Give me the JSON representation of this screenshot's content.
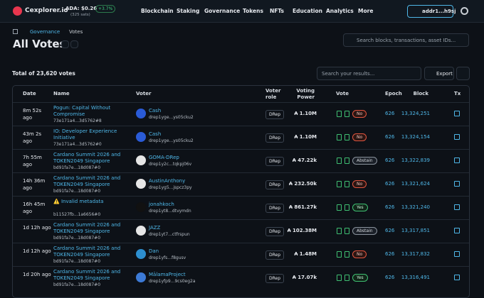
{
  "header": {
    "logo": "Cexplorer.io",
    "price": "ADA: $0.26",
    "change": "+3.7%",
    "sats": "(325 sats)",
    "nav": [
      "Blockchain",
      "Staking",
      "Governance",
      "Tokens",
      "NFTs",
      "Education",
      "Analytics",
      "More"
    ],
    "wallet": "addr1...h9sj"
  },
  "breadcrumb": [
    "Governance",
    "Votes"
  ],
  "title": "All Votes",
  "global_search": "Search blocks, transactions, asset IDs...",
  "total": "Total of 23,620 votes",
  "result_search": "Search your results...",
  "export": "Export",
  "table": {
    "columns": [
      "Date",
      "Name",
      "Voter",
      "Voter role",
      "Voting Power",
      "Vote",
      "Epoch",
      "Block",
      "Tx"
    ],
    "rows": [
      {
        "date": "8m 52s ago",
        "name": "Pogun: Capital Without Compromise",
        "hash": "73e171a4...3d5762#8",
        "voter": "Cash",
        "drep": "drep1yge...ys05cku2",
        "role": "DRep",
        "power": "₳ 1.10M",
        "vote": "No",
        "epoch": "626",
        "block": "13,324,251"
      },
      {
        "date": "43m 2s ago",
        "name": "IO: Developer Experience Initiative",
        "hash": "73e171a4...3d5762#0",
        "voter": "Cash",
        "drep": "drep1yge...ys05cku2",
        "role": "DRep",
        "power": "₳ 1.10M",
        "vote": "No",
        "epoch": "626",
        "block": "13,324,154"
      },
      {
        "date": "7h 55m ago",
        "name": "Cardano Summit 2026 and TOKEN2049 Singapore",
        "hash": "bd91fa7e...18d087#0",
        "voter": "GOMA-DRep",
        "drep": "drep1y2c...tqkpj06v",
        "role": "DRep",
        "power": "₳ 47.22k",
        "vote": "Abstain",
        "epoch": "626",
        "block": "13,322,839"
      },
      {
        "date": "14h 36m ago",
        "name": "Cardano Summit 2026 and TOKEN2049 Singapore",
        "hash": "bd91fa7e...18d087#0",
        "voter": "AustinAnthony",
        "drep": "drep1yg5...jspcz3py",
        "role": "DRep",
        "power": "₳ 232.50k",
        "vote": "No",
        "epoch": "626",
        "block": "13,321,624"
      },
      {
        "date": "16h 45m ago",
        "name": "⚠️ Invalid metadata",
        "hash": "b11527fb...1a6656#0",
        "voter": "jonahkoch",
        "drep": "drep1yt8...dtvymdn",
        "role": "DRep",
        "power": "₳ 861.27k",
        "vote": "Yes",
        "epoch": "626",
        "block": "13,321,240"
      },
      {
        "date": "1d 12h ago",
        "name": "Cardano Summit 2026 and TOKEN2049 Singapore",
        "hash": "bd91fa7e...18d087#0",
        "voter": "JAZZ",
        "drep": "drep1yt7...ctfrspun",
        "role": "DRep",
        "power": "₳ 102.38M",
        "vote": "Abstain",
        "epoch": "626",
        "block": "13,317,851"
      },
      {
        "date": "1d 12h ago",
        "name": "Cardano Summit 2026 and TOKEN2049 Singapore",
        "hash": "bd91fa7e...18d087#0",
        "voter": "Dan",
        "drep": "drep1yfs...f8gusv",
        "role": "DRep",
        "power": "₳ 1.48M",
        "vote": "No",
        "epoch": "626",
        "block": "13,317,832"
      },
      {
        "date": "1d 20h ago",
        "name": "Cardano Summit 2026 and TOKEN2049 Singapore",
        "hash": "bd91fa7e...18d087#0",
        "voter": "MālamaProject",
        "drep": "drep1yfp9...9cs0eg2a",
        "role": "DRep",
        "power": "₳ 17.07k",
        "vote": "Yes",
        "epoch": "626",
        "block": "13,316,491"
      }
    ]
  }
}
